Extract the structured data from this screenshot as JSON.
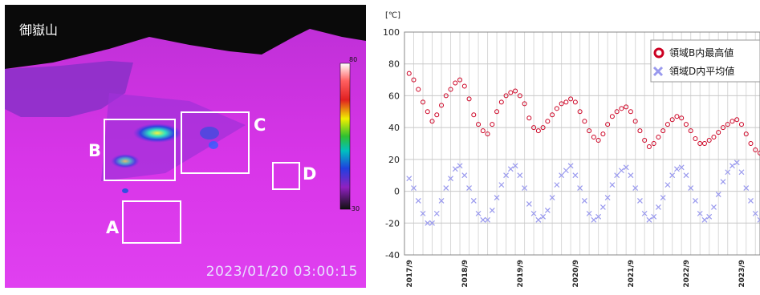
{
  "thermal_image": {
    "site_name": "御嶽山",
    "timestamp": "2023/01/20 03:00:15",
    "color_scale": {
      "max": "80",
      "min": "-30"
    },
    "regions": [
      {
        "id": "A",
        "label": "A"
      },
      {
        "id": "B",
        "label": "B"
      },
      {
        "id": "C",
        "label": "C"
      },
      {
        "id": "D",
        "label": "D"
      }
    ]
  },
  "chart_data": {
    "type": "scatter",
    "title": "",
    "ylabel": "[℃]",
    "xlabel": "",
    "ylim": [
      -40,
      100
    ],
    "yticks": [
      "100",
      "80",
      "60",
      "40",
      "20",
      "0",
      "-20",
      "-40"
    ],
    "xlim": [
      "2017-08",
      "2024-01"
    ],
    "xticks": [
      "2017/9",
      "2018/9",
      "2019/9",
      "2020/9",
      "2021/9",
      "2022/9",
      "2023/9"
    ],
    "grid": true,
    "legend_position": "top-right",
    "series": [
      {
        "name": "領域B内最高値",
        "marker": "open-circle",
        "color": "#cc0022",
        "points": [
          [
            "2017-09",
            74
          ],
          [
            "2017-10",
            70
          ],
          [
            "2017-11",
            64
          ],
          [
            "2017-12",
            56
          ],
          [
            "2018-01",
            50
          ],
          [
            "2018-02",
            44
          ],
          [
            "2018-03",
            48
          ],
          [
            "2018-04",
            54
          ],
          [
            "2018-05",
            60
          ],
          [
            "2018-06",
            64
          ],
          [
            "2018-07",
            68
          ],
          [
            "2018-08",
            70
          ],
          [
            "2018-09",
            66
          ],
          [
            "2018-10",
            58
          ],
          [
            "2018-11",
            48
          ],
          [
            "2018-12",
            42
          ],
          [
            "2019-01",
            38
          ],
          [
            "2019-02",
            36
          ],
          [
            "2019-03",
            42
          ],
          [
            "2019-04",
            50
          ],
          [
            "2019-05",
            56
          ],
          [
            "2019-06",
            60
          ],
          [
            "2019-07",
            62
          ],
          [
            "2019-08",
            63
          ],
          [
            "2019-09",
            60
          ],
          [
            "2019-10",
            55
          ],
          [
            "2019-11",
            46
          ],
          [
            "2019-12",
            40
          ],
          [
            "2020-01",
            38
          ],
          [
            "2020-02",
            40
          ],
          [
            "2020-03",
            44
          ],
          [
            "2020-04",
            48
          ],
          [
            "2020-05",
            52
          ],
          [
            "2020-06",
            55
          ],
          [
            "2020-07",
            56
          ],
          [
            "2020-08",
            58
          ],
          [
            "2020-09",
            56
          ],
          [
            "2020-10",
            50
          ],
          [
            "2020-11",
            44
          ],
          [
            "2020-12",
            38
          ],
          [
            "2021-01",
            34
          ],
          [
            "2021-02",
            32
          ],
          [
            "2021-03",
            36
          ],
          [
            "2021-04",
            42
          ],
          [
            "2021-05",
            47
          ],
          [
            "2021-06",
            50
          ],
          [
            "2021-07",
            52
          ],
          [
            "2021-08",
            53
          ],
          [
            "2021-09",
            50
          ],
          [
            "2021-10",
            44
          ],
          [
            "2021-11",
            38
          ],
          [
            "2021-12",
            32
          ],
          [
            "2022-01",
            28
          ],
          [
            "2022-02",
            30
          ],
          [
            "2022-03",
            34
          ],
          [
            "2022-04",
            38
          ],
          [
            "2022-05",
            42
          ],
          [
            "2022-06",
            45
          ],
          [
            "2022-07",
            47
          ],
          [
            "2022-08",
            46
          ],
          [
            "2022-09",
            42
          ],
          [
            "2022-10",
            38
          ],
          [
            "2022-11",
            33
          ],
          [
            "2022-12",
            30
          ],
          [
            "2023-01",
            30
          ],
          [
            "2023-02",
            32
          ],
          [
            "2023-03",
            34
          ],
          [
            "2023-04",
            37
          ],
          [
            "2023-05",
            40
          ],
          [
            "2023-06",
            42
          ],
          [
            "2023-07",
            44
          ],
          [
            "2023-08",
            45
          ],
          [
            "2023-09",
            42
          ],
          [
            "2023-10",
            36
          ],
          [
            "2023-11",
            30
          ],
          [
            "2023-12",
            26
          ],
          [
            "2024-01",
            24
          ]
        ]
      },
      {
        "name": "領域D内平均値",
        "marker": "x",
        "color": "#9999ee",
        "points": [
          [
            "2017-09",
            8
          ],
          [
            "2017-10",
            2
          ],
          [
            "2017-11",
            -6
          ],
          [
            "2017-12",
            -14
          ],
          [
            "2018-01",
            -20
          ],
          [
            "2018-02",
            -20
          ],
          [
            "2018-03",
            -14
          ],
          [
            "2018-04",
            -6
          ],
          [
            "2018-05",
            2
          ],
          [
            "2018-06",
            8
          ],
          [
            "2018-07",
            14
          ],
          [
            "2018-08",
            16
          ],
          [
            "2018-09",
            10
          ],
          [
            "2018-10",
            2
          ],
          [
            "2018-11",
            -6
          ],
          [
            "2018-12",
            -14
          ],
          [
            "2019-01",
            -18
          ],
          [
            "2019-02",
            -18
          ],
          [
            "2019-03",
            -12
          ],
          [
            "2019-04",
            -4
          ],
          [
            "2019-05",
            4
          ],
          [
            "2019-06",
            10
          ],
          [
            "2019-07",
            14
          ],
          [
            "2019-08",
            16
          ],
          [
            "2019-09",
            10
          ],
          [
            "2019-10",
            2
          ],
          [
            "2019-11",
            -8
          ],
          [
            "2019-12",
            -14
          ],
          [
            "2020-01",
            -18
          ],
          [
            "2020-02",
            -16
          ],
          [
            "2020-03",
            -12
          ],
          [
            "2020-04",
            -4
          ],
          [
            "2020-05",
            4
          ],
          [
            "2020-06",
            10
          ],
          [
            "2020-07",
            13
          ],
          [
            "2020-08",
            16
          ],
          [
            "2020-09",
            10
          ],
          [
            "2020-10",
            2
          ],
          [
            "2020-11",
            -6
          ],
          [
            "2020-12",
            -14
          ],
          [
            "2021-01",
            -18
          ],
          [
            "2021-02",
            -16
          ],
          [
            "2021-03",
            -10
          ],
          [
            "2021-04",
            -4
          ],
          [
            "2021-05",
            4
          ],
          [
            "2021-06",
            10
          ],
          [
            "2021-07",
            13
          ],
          [
            "2021-08",
            15
          ],
          [
            "2021-09",
            10
          ],
          [
            "2021-10",
            2
          ],
          [
            "2021-11",
            -6
          ],
          [
            "2021-12",
            -14
          ],
          [
            "2022-01",
            -18
          ],
          [
            "2022-02",
            -16
          ],
          [
            "2022-03",
            -10
          ],
          [
            "2022-04",
            -4
          ],
          [
            "2022-05",
            4
          ],
          [
            "2022-06",
            10
          ],
          [
            "2022-07",
            14
          ],
          [
            "2022-08",
            15
          ],
          [
            "2022-09",
            10
          ],
          [
            "2022-10",
            2
          ],
          [
            "2022-11",
            -6
          ],
          [
            "2022-12",
            -14
          ],
          [
            "2023-01",
            -18
          ],
          [
            "2023-02",
            -16
          ],
          [
            "2023-03",
            -10
          ],
          [
            "2023-04",
            -2
          ],
          [
            "2023-05",
            6
          ],
          [
            "2023-06",
            12
          ],
          [
            "2023-07",
            16
          ],
          [
            "2023-08",
            18
          ],
          [
            "2023-09",
            12
          ],
          [
            "2023-10",
            2
          ],
          [
            "2023-11",
            -6
          ],
          [
            "2023-12",
            -14
          ],
          [
            "2024-01",
            -18
          ]
        ]
      }
    ]
  }
}
